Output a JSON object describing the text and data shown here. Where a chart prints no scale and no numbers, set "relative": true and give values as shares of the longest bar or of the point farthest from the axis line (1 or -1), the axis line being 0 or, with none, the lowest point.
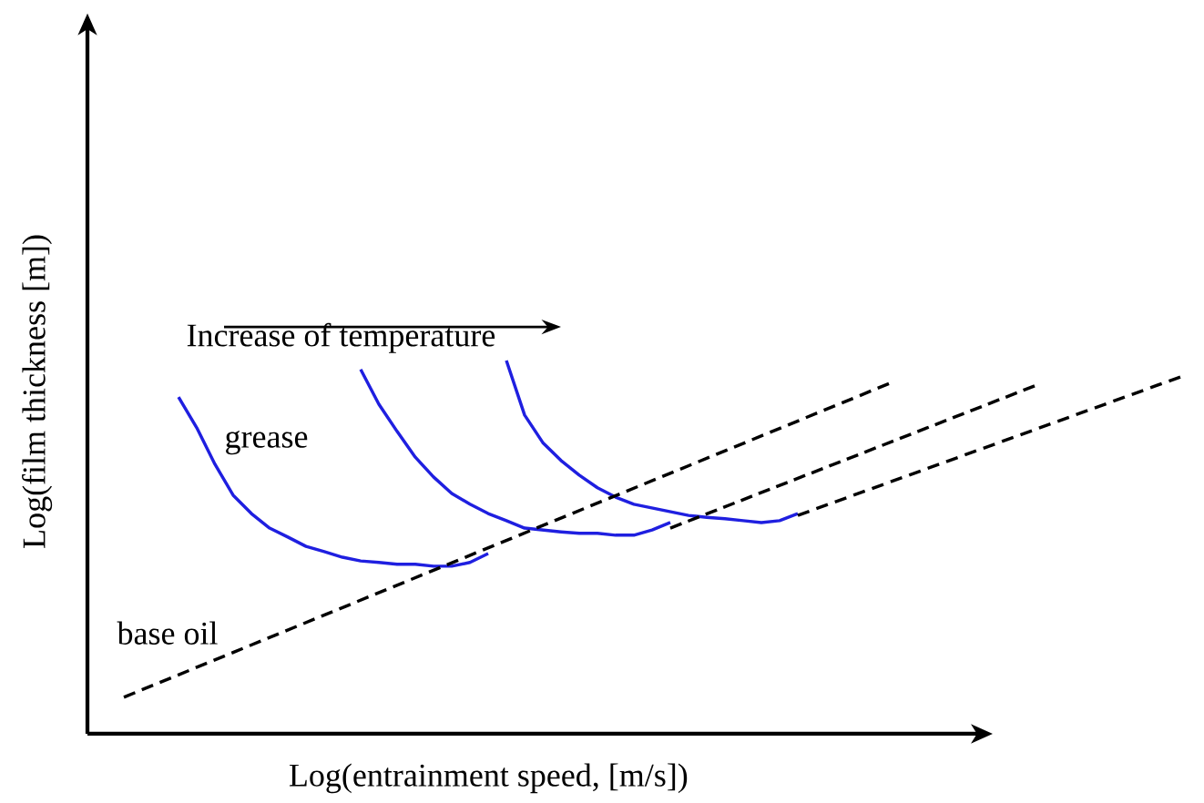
{
  "chart_data": {
    "type": "line",
    "relative": true,
    "xlabel": "Log(entrainment speed, [m/s])",
    "ylabel": "Log(film thickness [m])",
    "categories": [
      null,
      null,
      null,
      null,
      null,
      null,
      null,
      null,
      null,
      null,
      null,
      null,
      null,
      null,
      null,
      null,
      null,
      null,
      null,
      null,
      null,
      null,
      null,
      null,
      null,
      null,
      null,
      null,
      null,
      null,
      null,
      null,
      null,
      null,
      null,
      null,
      null,
      null,
      null,
      null,
      null,
      null,
      null,
      null,
      null,
      null,
      null,
      null,
      null,
      null,
      null,
      null,
      null,
      null,
      null,
      null,
      null,
      null,
      null,
      null,
      null
    ],
    "annotations": [
      "Increase of temperature",
      "grease",
      "base oil"
    ],
    "series": [
      {
        "color": "#1f1fe0",
        "line_style": "solid",
        "values": [
          null,
          null,
          null,
          null,
          null,
          0.902,
          0.82,
          0.722,
          0.639,
          0.59,
          0.551,
          0.527,
          0.502,
          0.488,
          0.473,
          0.463,
          0.459,
          0.454,
          0.454,
          0.449,
          0.449,
          0.459,
          0.483,
          null,
          null,
          null,
          null,
          null,
          null,
          null,
          null,
          null,
          null,
          null,
          null,
          null,
          null,
          null,
          null,
          null,
          null,
          null,
          null,
          null,
          null,
          null,
          null,
          null,
          null,
          null,
          null,
          null,
          null,
          null,
          null,
          null,
          null,
          null,
          null,
          null,
          null
        ]
      },
      {
        "color": "#1f1fe0",
        "line_style": "solid",
        "values": [
          null,
          null,
          null,
          null,
          null,
          null,
          null,
          null,
          null,
          null,
          null,
          null,
          null,
          null,
          null,
          0.976,
          0.883,
          0.81,
          0.741,
          0.688,
          0.644,
          0.615,
          0.59,
          0.571,
          0.551,
          0.546,
          0.541,
          0.537,
          0.537,
          0.532,
          0.532,
          0.546,
          0.566,
          null,
          null,
          null,
          null,
          null,
          null,
          null,
          null,
          null,
          null,
          null,
          null,
          null,
          null,
          null,
          null,
          null,
          null,
          null,
          null,
          null,
          null,
          null,
          null,
          null,
          null,
          null,
          null
        ]
      },
      {
        "color": "#1f1fe0",
        "line_style": "solid",
        "values": [
          null,
          null,
          null,
          null,
          null,
          null,
          null,
          null,
          null,
          null,
          null,
          null,
          null,
          null,
          null,
          null,
          null,
          null,
          null,
          null,
          null,
          null,
          null,
          1.0,
          0.854,
          0.78,
          0.732,
          0.693,
          0.659,
          0.634,
          0.615,
          0.605,
          0.595,
          0.585,
          0.58,
          0.576,
          0.571,
          0.566,
          0.571,
          0.59,
          null,
          null,
          null,
          null,
          null,
          null,
          null,
          null,
          null,
          null,
          null,
          null,
          null,
          null,
          null,
          null,
          null,
          null,
          null,
          null,
          null
        ]
      },
      {
        "color": "#000000",
        "line_style": "dashed",
        "values": [
          null,
          null,
          0.098,
          null,
          null,
          null,
          null,
          null,
          null,
          null,
          null,
          null,
          null,
          null,
          null,
          null,
          null,
          null,
          null,
          null,
          null,
          null,
          null,
          null,
          null,
          null,
          null,
          null,
          null,
          null,
          null,
          null,
          null,
          null,
          null,
          null,
          null,
          null,
          null,
          null,
          null,
          null,
          null,
          null,
          0.938,
          null,
          null,
          null,
          null,
          null,
          null,
          null,
          null,
          null,
          null,
          null,
          null,
          null,
          null,
          null,
          null
        ]
      },
      {
        "color": "#000000",
        "line_style": "dashed",
        "values": [
          null,
          null,
          null,
          null,
          null,
          null,
          null,
          null,
          null,
          null,
          null,
          null,
          null,
          null,
          null,
          null,
          null,
          null,
          null,
          null,
          null,
          null,
          null,
          null,
          null,
          null,
          null,
          null,
          null,
          null,
          null,
          null,
          0.551,
          null,
          null,
          null,
          null,
          null,
          null,
          null,
          null,
          null,
          null,
          null,
          null,
          null,
          null,
          null,
          null,
          null,
          null,
          null,
          0.932,
          null,
          null,
          null,
          null,
          null,
          null,
          null,
          null
        ]
      },
      {
        "color": "#000000",
        "line_style": "dashed",
        "values": [
          null,
          null,
          null,
          null,
          null,
          null,
          null,
          null,
          null,
          null,
          null,
          null,
          null,
          null,
          null,
          null,
          null,
          null,
          null,
          null,
          null,
          null,
          null,
          null,
          null,
          null,
          null,
          null,
          null,
          null,
          null,
          null,
          null,
          null,
          null,
          null,
          null,
          null,
          null,
          0.585,
          null,
          null,
          null,
          null,
          null,
          null,
          null,
          null,
          null,
          null,
          null,
          null,
          null,
          null,
          null,
          null,
          null,
          null,
          null,
          null,
          0.956
        ]
      }
    ]
  }
}
